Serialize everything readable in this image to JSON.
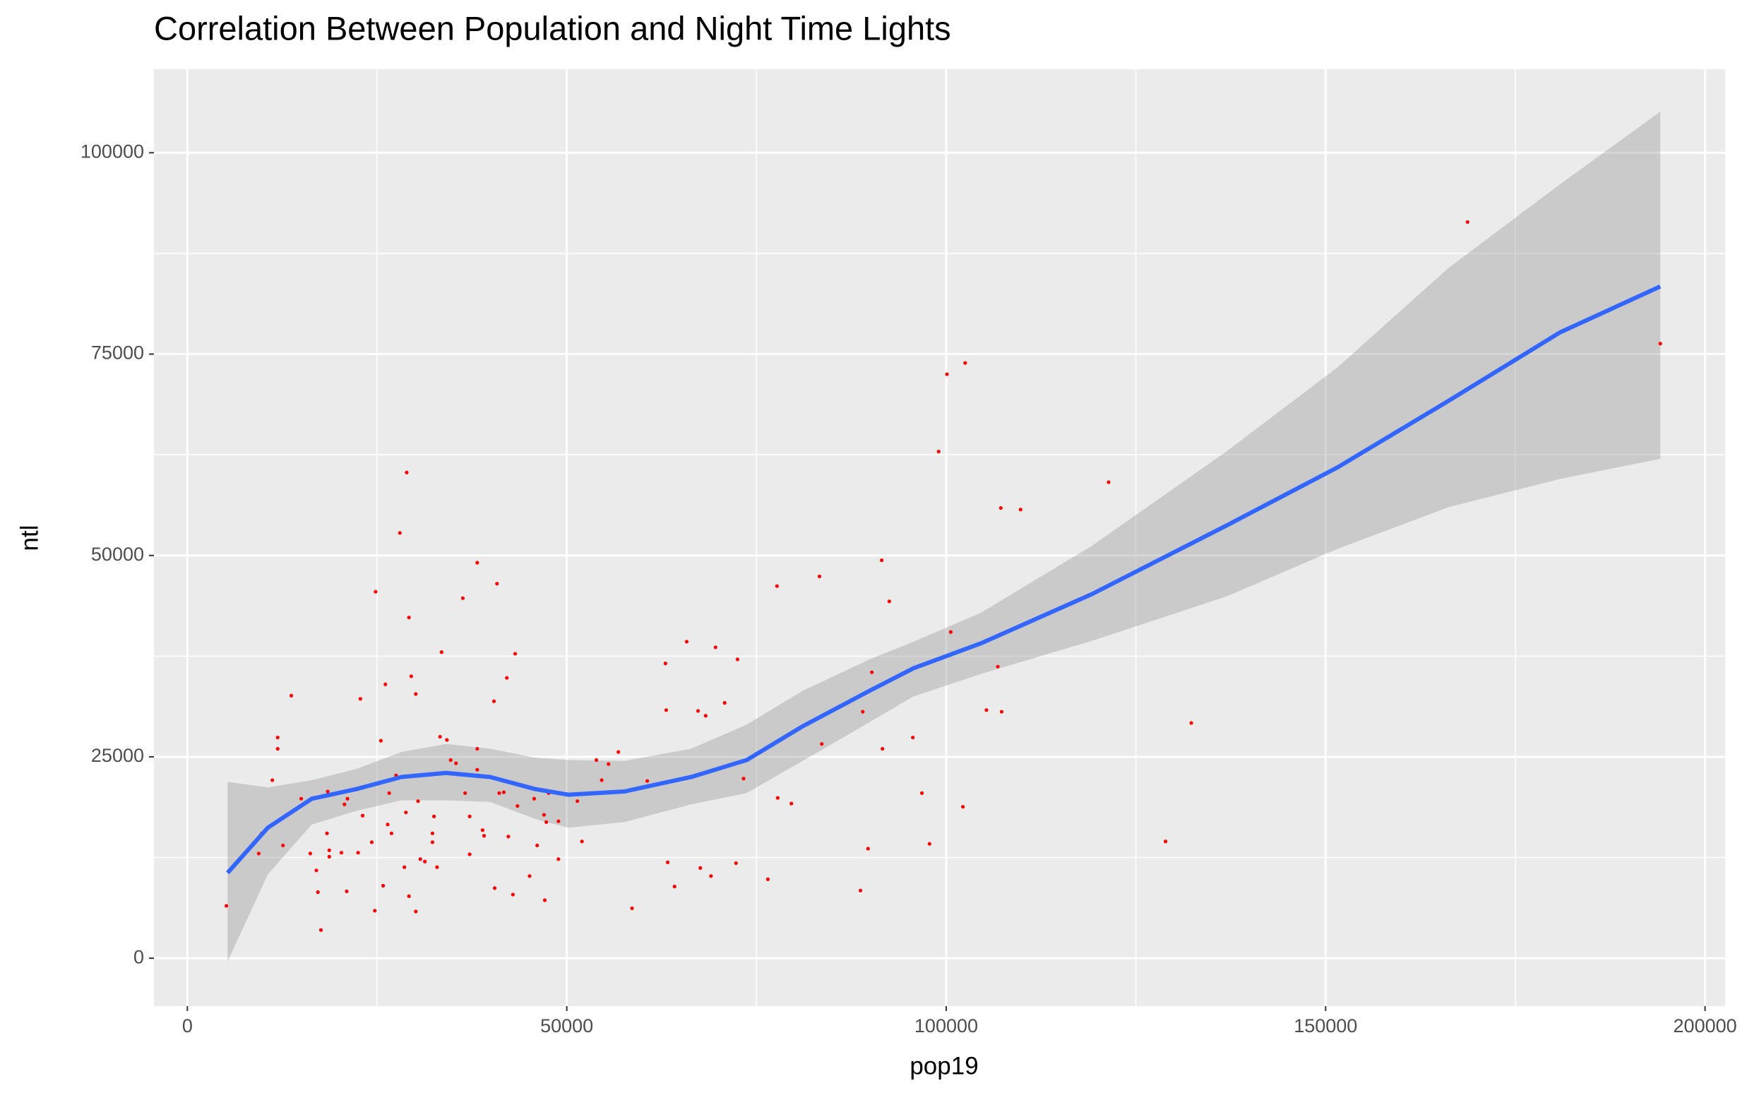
{
  "chart_data": {
    "type": "scatter",
    "title": "Correlation Between Population and Night Time Lights",
    "x_label": "pop19",
    "y_label": "ntl",
    "xlim": [
      -4405,
      202643
    ],
    "ylim": [
      -5947,
      110373
    ],
    "xticks": [
      0,
      50000,
      100000,
      150000,
      200000
    ],
    "yticks": [
      0,
      25000,
      50000,
      75000,
      100000
    ],
    "grid": true,
    "series": [
      {
        "color": "#ff0000",
        "x": [
          5140,
          9400,
          9800,
          11200,
          11900,
          11900,
          12600,
          13700,
          15000,
          16200,
          17000,
          17200,
          17600,
          18400,
          18500,
          18700,
          18700,
          20300,
          20700,
          21000,
          21100,
          22500,
          22800,
          23100,
          24300,
          24700,
          24800,
          25500,
          25800,
          26100,
          26400,
          26600,
          26900,
          27500,
          28000,
          28600,
          28800,
          28900,
          29200,
          29200,
          29500,
          30100,
          30100,
          30400,
          30700,
          31300,
          32300,
          32300,
          32500,
          32900,
          33300,
          33500,
          34200,
          34700,
          35400,
          36300,
          36600,
          37200,
          37200,
          38200,
          38200,
          38200,
          38900,
          39100,
          40400,
          40500,
          40800,
          41100,
          41700,
          42100,
          42300,
          42900,
          43200,
          43500,
          45100,
          45700,
          46100,
          47000,
          47100,
          47300,
          47600,
          48900,
          48900,
          51400,
          52000,
          53900,
          54600,
          55500,
          56800,
          58600,
          60600,
          63000,
          63100,
          63300,
          64200,
          65800,
          67300,
          67600,
          68300,
          69000,
          69600,
          70800,
          72300,
          72500,
          73300,
          76500,
          77700,
          77800,
          79600,
          83300,
          83600,
          88700,
          89000,
          89700,
          90200,
          91500,
          91600,
          92500,
          95600,
          96800,
          97800,
          99000,
          100100,
          100600,
          102200,
          102500,
          105300,
          106800,
          107200,
          107300,
          109800,
          121400,
          128900,
          132300,
          168700,
          194100
        ],
        "values": [
          6500,
          13000,
          15500,
          22100,
          26000,
          27400,
          14000,
          32600,
          19800,
          13000,
          10900,
          8200,
          3500,
          15500,
          20700,
          13400,
          12600,
          13100,
          19100,
          8300,
          19800,
          13100,
          32200,
          17700,
          14400,
          5900,
          45500,
          27000,
          9000,
          34000,
          16600,
          20500,
          15500,
          22700,
          52800,
          11300,
          18100,
          60300,
          42300,
          7700,
          35000,
          32800,
          5800,
          19500,
          12300,
          12000,
          15500,
          14400,
          17600,
          11300,
          27500,
          38000,
          27100,
          24600,
          24200,
          44700,
          20500,
          17600,
          12900,
          49100,
          26000,
          23400,
          15900,
          15200,
          31900,
          8700,
          46500,
          20500,
          20600,
          34800,
          15100,
          7900,
          37800,
          18900,
          10200,
          19800,
          14000,
          17800,
          7200,
          16900,
          20500,
          12300,
          17000,
          19500,
          14500,
          24600,
          22100,
          24100,
          25600,
          6200,
          22000,
          36600,
          30800,
          11900,
          8900,
          39300,
          30700,
          11200,
          30100,
          10200,
          38600,
          31700,
          11800,
          37100,
          22300,
          9800,
          46200,
          19900,
          19200,
          47400,
          26600,
          8400,
          30600,
          13600,
          35500,
          49400,
          26000,
          44300,
          27400,
          20500,
          14200,
          62900,
          72500,
          40500,
          18800,
          73900,
          30800,
          36200,
          55900,
          30600,
          55700,
          59100,
          14500,
          29200,
          91400,
          76300
        ]
      }
    ],
    "smooth": {
      "color": "#3366ff",
      "band_color": "#999999",
      "x": [
        5300,
        10600,
        16400,
        22300,
        28200,
        34100,
        39900,
        45800,
        50200,
        57600,
        66400,
        73700,
        81100,
        89900,
        95700,
        104600,
        119200,
        136900,
        151500,
        166200,
        180900,
        194100
      ],
      "y": [
        10600,
        16200,
        19800,
        21000,
        22500,
        23000,
        22500,
        21000,
        20300,
        20700,
        22500,
        24600,
        28800,
        33200,
        36000,
        39100,
        45200,
        53700,
        60900,
        69200,
        77700,
        83400
      ],
      "ymin": [
        -400,
        10400,
        16600,
        18300,
        19600,
        19600,
        19400,
        17300,
        16200,
        16900,
        19100,
        20500,
        24500,
        29300,
        32500,
        35300,
        39400,
        44900,
        50800,
        56000,
        59500,
        62000
      ],
      "ymax": [
        21900,
        21200,
        22100,
        23500,
        25600,
        26600,
        26000,
        24900,
        24600,
        24500,
        26000,
        29000,
        33200,
        37100,
        39300,
        42900,
        51200,
        62900,
        73300,
        85700,
        96100,
        105100
      ]
    }
  }
}
